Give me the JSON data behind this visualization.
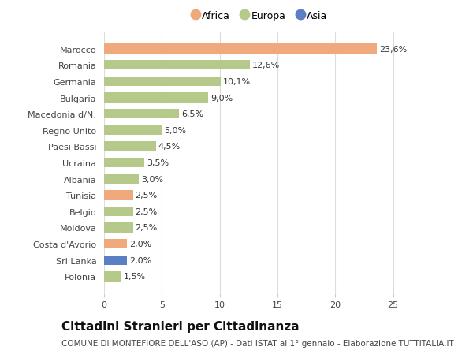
{
  "categories": [
    "Polonia",
    "Sri Lanka",
    "Costa d'Avorio",
    "Moldova",
    "Belgio",
    "Tunisia",
    "Albania",
    "Ucraina",
    "Paesi Bassi",
    "Regno Unito",
    "Macedonia d/N.",
    "Bulgaria",
    "Germania",
    "Romania",
    "Marocco"
  ],
  "values": [
    1.5,
    2.0,
    2.0,
    2.5,
    2.5,
    2.5,
    3.0,
    3.5,
    4.5,
    5.0,
    6.5,
    9.0,
    10.1,
    12.6,
    23.6
  ],
  "labels": [
    "1,5%",
    "2,0%",
    "2,0%",
    "2,5%",
    "2,5%",
    "2,5%",
    "3,0%",
    "3,5%",
    "4,5%",
    "5,0%",
    "6,5%",
    "9,0%",
    "10,1%",
    "12,6%",
    "23,6%"
  ],
  "colors": [
    "#b5c98a",
    "#5b7fc4",
    "#f0a97c",
    "#b5c98a",
    "#b5c98a",
    "#f0a97c",
    "#b5c98a",
    "#b5c98a",
    "#b5c98a",
    "#b5c98a",
    "#b5c98a",
    "#b5c98a",
    "#b5c98a",
    "#b5c98a",
    "#f0a97c"
  ],
  "legend_labels": [
    "Africa",
    "Europa",
    "Asia"
  ],
  "legend_colors": [
    "#f0a97c",
    "#b5c98a",
    "#5b7fc4"
  ],
  "title": "Cittadini Stranieri per Cittadinanza",
  "subtitle": "COMUNE DI MONTEFIORE DELL'ASO (AP) - Dati ISTAT al 1° gennaio - Elaborazione TUTTITALIA.IT",
  "xlim": [
    0,
    27
  ],
  "xticks": [
    0,
    5,
    10,
    15,
    20,
    25
  ],
  "bg_color": "#ffffff",
  "bar_height": 0.6,
  "label_fontsize": 8.0,
  "ytick_fontsize": 8.0,
  "xtick_fontsize": 8.0,
  "title_fontsize": 11,
  "subtitle_fontsize": 7.5
}
